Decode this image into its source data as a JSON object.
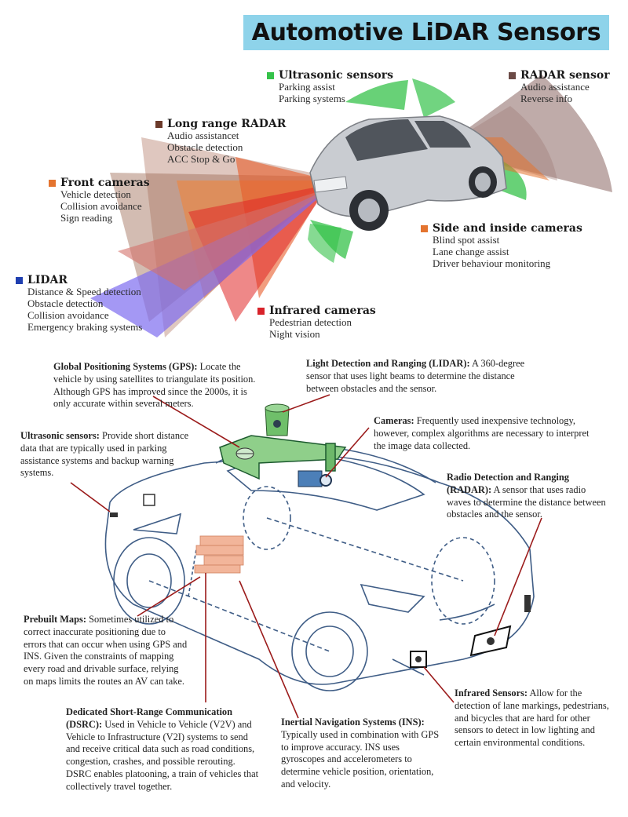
{
  "title": "Automotive LiDAR Sensors",
  "colors": {
    "ultrasonic": "#35c24a",
    "radar": "#6b4a46",
    "long_range_radar": "#6b3a2a",
    "front_cameras": "#e4742f",
    "side_cameras": "#e4742f",
    "lidar": "#1f3fb0",
    "infrared": "#d8232a",
    "banner": "#8ed3ea",
    "leader": "#9b1b1b"
  },
  "top_sensors": [
    {
      "id": "ultrasonic",
      "title": "Ultrasonic sensors",
      "items": [
        "Parking assist",
        "Parking systems"
      ]
    },
    {
      "id": "radar",
      "title": "RADAR sensor",
      "items": [
        "Audio assistance",
        "Reverse info"
      ]
    },
    {
      "id": "long_range_radar",
      "title": "Long range RADAR",
      "items": [
        "Audio assistancet",
        "Obstacle detection",
        "ACC Stop & Go"
      ]
    },
    {
      "id": "front_cameras",
      "title": "Front cameras",
      "items": [
        "Vehicle detection",
        "Collision avoidance",
        "Sign reading"
      ]
    },
    {
      "id": "side_cameras",
      "title": "Side and inside cameras",
      "items": [
        "Blind spot assist",
        "Lane change assist",
        "Driver behaviour monitoring"
      ]
    },
    {
      "id": "lidar",
      "title": "LIDAR",
      "items": [
        "Distance & Speed detection",
        "Obstacle detection",
        "Collision avoidance",
        "Emergency braking systems"
      ]
    },
    {
      "id": "infrared",
      "title": "Infrared cameras",
      "items": [
        "Pedestrian detection",
        "Night vision"
      ]
    }
  ],
  "annotations": [
    {
      "id": "gps",
      "title": "Global Positioning Systems (GPS):",
      "text": "Locate the vehicle by using satellites to triangulate its position. Although GPS has improved since the 2000s, it is only accurate within several meters."
    },
    {
      "id": "lidar",
      "title": "Light Detection and Ranging (LIDAR):",
      "text": "A 360-degree sensor that uses light beams to determine the distance between obstacles and the sensor."
    },
    {
      "id": "ultrasonic",
      "title": "Ultrasonic sensors:",
      "text": "Provide short distance data that are typically used in parking assistance systems and backup warning systems."
    },
    {
      "id": "cameras",
      "title": "Cameras:",
      "text": "Frequently used inexpensive technology, however, complex algorithms are necessary to interpret the image data collected."
    },
    {
      "id": "radar",
      "title": "Radio Detection and Ranging (RADAR):",
      "text": "A sensor that uses radio waves to determine the distance between obstacles and the sensor."
    },
    {
      "id": "maps",
      "title": "Prebuilt Maps:",
      "text": "Sometimes utilized to correct inaccurate positioning due to errors that can occur when using GPS and INS. Given the constraints of mapping every road and drivable surface, relying on maps limits the routes  an AV can take."
    },
    {
      "id": "infrared",
      "title": "Infrared Sensors:",
      "text": "Allow for the detection of lane markings, pedestrians, and bicycles that are hard for other sensors to detect in low lighting and certain environmental conditions."
    },
    {
      "id": "dsrc",
      "title": "Dedicated Short-Range Communication (DSRC):",
      "text": "Used in Vehicle to Vehicle (V2V) and Vehicle to Infrastructure (V2I) systems to send and receive critical data such as road conditions, congestion, crashes, and possible rerouting. DSRC enables platooning, a train of vehicles that collectively travel together."
    },
    {
      "id": "ins",
      "title": "Inertial Navigation Systems (INS):",
      "text": "Typically used in combination with GPS to improve accuracy. INS uses gyroscopes and accelerometers to determine vehicle position, orientation, and velocity."
    }
  ]
}
